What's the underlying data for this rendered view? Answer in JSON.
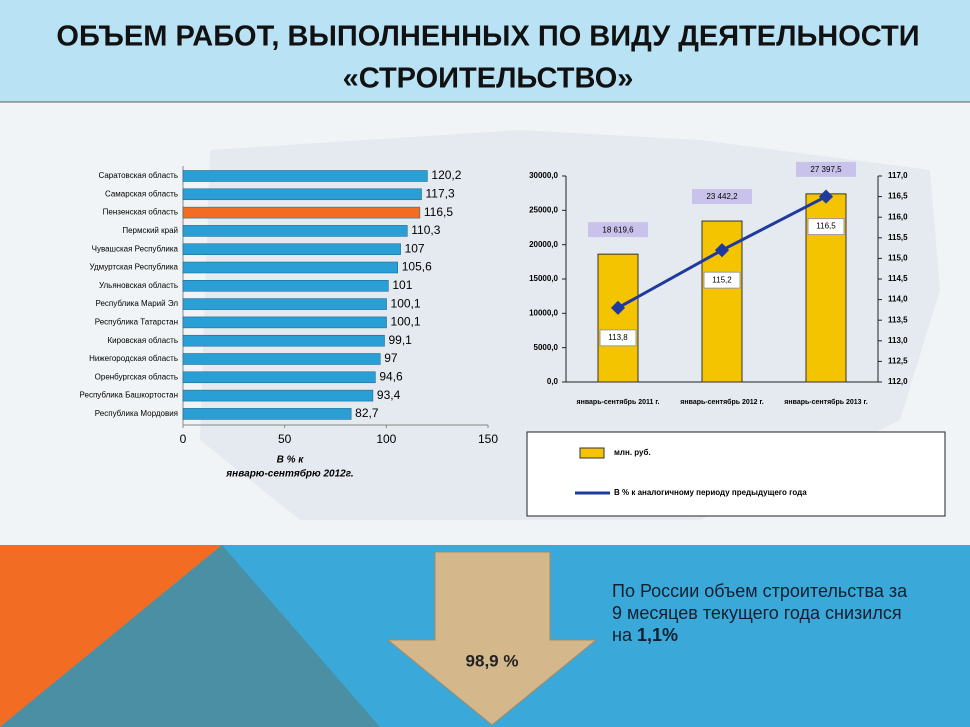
{
  "slide": {
    "title_lines": [
      "ОБЪЕМ РАБОТ, ВЫПОЛНЕННЫХ ПО ВИДУ ДЕЯТЕЛЬНОСТИ",
      "«СТРОИТЕЛЬСТВО»"
    ],
    "arrow_label": "98,9 %",
    "summary": {
      "text": "По России объем строительства за 9 месяцев текущего года снизился на ",
      "emphasis": "1,1%"
    }
  },
  "chart_data": [
    {
      "type": "hbar",
      "categories": [
        "Саратовская область",
        "Самарская область",
        "Пензенская область",
        "Пермский край",
        "Чувашская Республика",
        "Удмуртская Республика",
        "Ульяновская область",
        "Республика Марий Эл",
        "Республика Татарстан",
        "Кировская область",
        "Нижегородская область",
        "Оренбургская область",
        "Республика Башкортостан",
        "Республика Мордовия"
      ],
      "values": [
        120.2,
        117.3,
        116.5,
        110.3,
        107,
        105.6,
        101,
        100.1,
        100.1,
        99.1,
        97,
        94.6,
        93.4,
        82.7
      ],
      "value_labels": [
        "120,2",
        "117,3",
        "116,5",
        "110,3",
        "107",
        "105,6",
        "101",
        "100,1",
        "100,1",
        "99,1",
        "97",
        "94,6",
        "93,4",
        "82,7"
      ],
      "colors": [
        "#2a9fd6",
        "#2a9fd6",
        "#f26c23",
        "#2a9fd6",
        "#2a9fd6",
        "#2a9fd6",
        "#2a9fd6",
        "#2a9fd6",
        "#2a9fd6",
        "#2a9fd6",
        "#2a9fd6",
        "#2a9fd6",
        "#2a9fd6",
        "#2a9fd6"
      ],
      "xlim": [
        0,
        150
      ],
      "xticks": [
        0,
        50,
        100,
        150
      ],
      "xlabel": [
        "В % к",
        "январю-сентябрю 2012г."
      ]
    },
    {
      "type": "combo",
      "categories": [
        "январь-сентябрь 2011 г.",
        "январь-сентябрь 2012 г.",
        "январь-сентябрь 2013 г."
      ],
      "ylim": [
        0,
        30000
      ],
      "yticks": [
        {
          "value": 0,
          "label": "0,0"
        },
        {
          "value": 5000,
          "label": "5000,0"
        },
        {
          "value": 10000,
          "label": "10000,0"
        },
        {
          "value": 15000,
          "label": "15000,0"
        },
        {
          "value": 20000,
          "label": "20000,0"
        },
        {
          "value": 25000,
          "label": "25000,0"
        },
        {
          "value": 30000,
          "label": "30000,0"
        }
      ],
      "y2lim": [
        112,
        117
      ],
      "y2ticks": [
        {
          "value": 112,
          "label": "112,0"
        },
        {
          "value": 112.5,
          "label": "112,5"
        },
        {
          "value": 113,
          "label": "113,0"
        },
        {
          "value": 113.5,
          "label": "113,5"
        },
        {
          "value": 114,
          "label": "114,0"
        },
        {
          "value": 114.5,
          "label": "114,5"
        },
        {
          "value": 115,
          "label": "115,0"
        },
        {
          "value": 115.5,
          "label": "115,5"
        },
        {
          "value": 116,
          "label": "116,0"
        },
        {
          "value": 116.5,
          "label": "116,5"
        },
        {
          "value": 117,
          "label": "117,0"
        }
      ],
      "series": [
        {
          "name": "млн. руб.",
          "color": "#f5c400",
          "values": [
            18619.6,
            23442.2,
            27397.5
          ],
          "value_labels": [
            "18 619,6",
            "23 442,2",
            "27 397,5"
          ]
        },
        {
          "name": "В % к аналогичному периоду предыдущего года",
          "color": "#1f3a9e",
          "axis": "y2",
          "values": [
            113.8,
            115.2,
            116.5
          ],
          "value_labels": [
            "113,8",
            "115,2",
            "116,5"
          ]
        }
      ]
    }
  ]
}
